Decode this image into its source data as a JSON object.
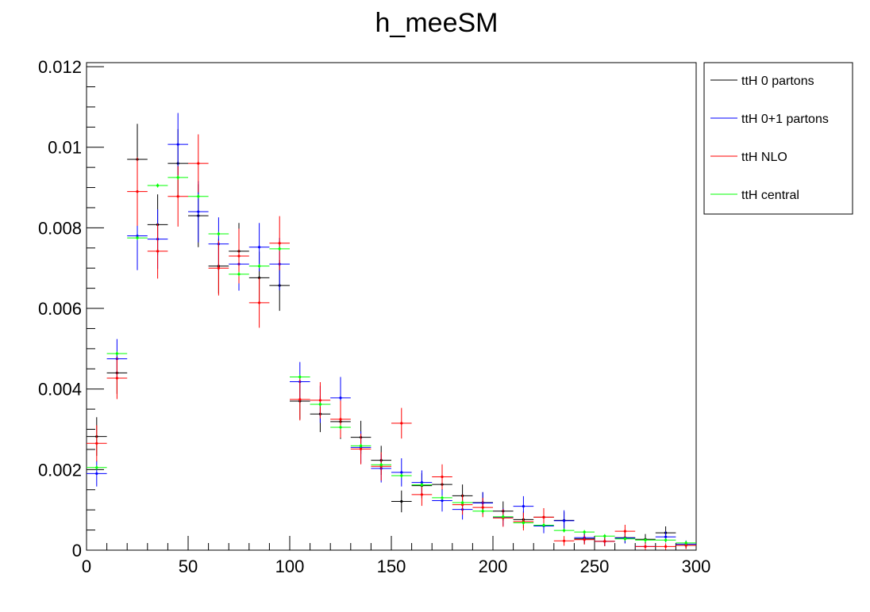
{
  "chart_data": {
    "type": "scatter",
    "title": "h_meeSM",
    "xlabel": "",
    "ylabel": "",
    "xlim": [
      0,
      300
    ],
    "ylim": [
      0,
      0.0121
    ],
    "grid": false,
    "legend_position": "top-right",
    "x_ticks": [
      0,
      50,
      100,
      150,
      200,
      250,
      300
    ],
    "x_tick_labels": [
      "0",
      "50",
      "100",
      "150",
      "200",
      "250",
      "300"
    ],
    "y_ticks": [
      0,
      0.002,
      0.004,
      0.006,
      0.008,
      0.01,
      0.012
    ],
    "y_tick_labels": [
      "0",
      "0.002",
      "0.004",
      "0.006",
      "0.008",
      "0.01",
      "0.012"
    ],
    "bin_width": 10,
    "x": [
      5,
      15,
      25,
      35,
      45,
      55,
      65,
      75,
      85,
      95,
      105,
      115,
      125,
      135,
      145,
      155,
      165,
      175,
      185,
      195,
      205,
      215,
      225,
      235,
      245,
      255,
      265,
      275,
      285,
      295
    ],
    "series": [
      {
        "name": "ttH 0 partons",
        "color": "#000000",
        "values": [
          0.00282,
          0.0044,
          0.0097,
          0.00808,
          0.0096,
          0.0083,
          0.00705,
          0.00742,
          0.00676,
          0.00657,
          0.0037,
          0.00338,
          0.00319,
          0.0028,
          0.00223,
          0.00121,
          0.0016,
          0.00163,
          0.00135,
          0.00118,
          0.00097,
          0.00076,
          0.00082,
          0.00074,
          0.00028,
          0.00022,
          0.00031,
          0.00027,
          0.00043,
          0.00012
        ],
        "errors": [
          0.00048,
          0.00052,
          0.00088,
          0.00075,
          0.00085,
          0.00078,
          0.00068,
          0.0007,
          0.00065,
          0.00063,
          0.00045,
          0.00045,
          0.00043,
          0.00041,
          0.00036,
          0.00027,
          0.00031,
          0.00031,
          0.00028,
          0.00026,
          0.00024,
          0.00021,
          0.00022,
          0.00021,
          0.00013,
          0.00012,
          0.00014,
          0.00013,
          0.00016,
          9e-05
        ]
      },
      {
        "name": "ttH 0+1 partons",
        "color": "#0000ff",
        "values": [
          0.0019,
          0.00475,
          0.0078,
          0.00772,
          0.01007,
          0.0084,
          0.0076,
          0.0071,
          0.00752,
          0.0071,
          0.00418,
          0.00362,
          0.00378,
          0.00255,
          0.00203,
          0.00193,
          0.00168,
          0.00123,
          0.00101,
          0.00117,
          0.00082,
          0.00109,
          0.0006,
          0.00073,
          0.00031,
          0.00022,
          0.0003,
          9e-05,
          0.00033,
          0.00015
        ],
        "errors": [
          0.00032,
          0.00049,
          0.00085,
          0.00074,
          0.00078,
          0.00076,
          0.00066,
          0.00066,
          0.0006,
          0.00065,
          0.00049,
          0.00046,
          0.00052,
          0.0004,
          0.00035,
          0.00035,
          0.0003,
          0.00027,
          0.00025,
          0.00027,
          0.00022,
          0.00025,
          0.00018,
          0.00026,
          0.00013,
          0.00011,
          0.00013,
          8e-05,
          0.00014,
          9e-05
        ]
      },
      {
        "name": "ttH NLO",
        "color": "#ff0000",
        "values": [
          0.00265,
          0.00427,
          0.0089,
          0.00742,
          0.00878,
          0.0096,
          0.007,
          0.0073,
          0.00614,
          0.00762,
          0.00374,
          0.00372,
          0.00325,
          0.00251,
          0.00208,
          0.00315,
          0.00138,
          0.00182,
          0.00113,
          0.00106,
          0.0008,
          0.00071,
          0.00082,
          0.00023,
          0.00026,
          0.00022,
          0.00047,
          9e-05,
          9e-05,
          0.00012
        ],
        "errors": [
          0.00045,
          0.00052,
          0.00085,
          0.00068,
          0.00075,
          0.00072,
          0.00068,
          0.00068,
          0.00062,
          0.00067,
          0.00052,
          0.00045,
          0.00046,
          0.00038,
          0.00035,
          0.00038,
          0.00028,
          0.00031,
          0.00025,
          0.00024,
          0.00022,
          0.00022,
          0.00022,
          0.00012,
          0.00012,
          0.00012,
          0.00016,
          8e-05,
          8e-05,
          9e-05
        ]
      },
      {
        "name": "ttH central",
        "color": "#00ff00",
        "values": [
          0.00205,
          0.00488,
          0.00775,
          0.00905,
          0.00925,
          0.00878,
          0.00785,
          0.00685,
          0.00705,
          0.00748,
          0.0043,
          0.00362,
          0.00305,
          0.00259,
          0.00212,
          0.00185,
          0.00162,
          0.0013,
          0.00118,
          0.00097,
          0.00083,
          0.00068,
          0.00062,
          0.00049,
          0.00045,
          0.00035,
          0.00028,
          0.00025,
          0.00025,
          0.00018
        ],
        "errors": [
          5e-05,
          5e-05,
          5e-05,
          5e-05,
          5e-05,
          5e-05,
          5e-05,
          5e-05,
          5e-05,
          5e-05,
          5e-05,
          5e-05,
          5e-05,
          5e-05,
          5e-05,
          5e-05,
          5e-05,
          5e-05,
          5e-05,
          5e-05,
          5e-05,
          5e-05,
          5e-05,
          5e-05,
          5e-05,
          5e-05,
          5e-05,
          5e-05,
          5e-05,
          5e-05
        ]
      }
    ]
  }
}
